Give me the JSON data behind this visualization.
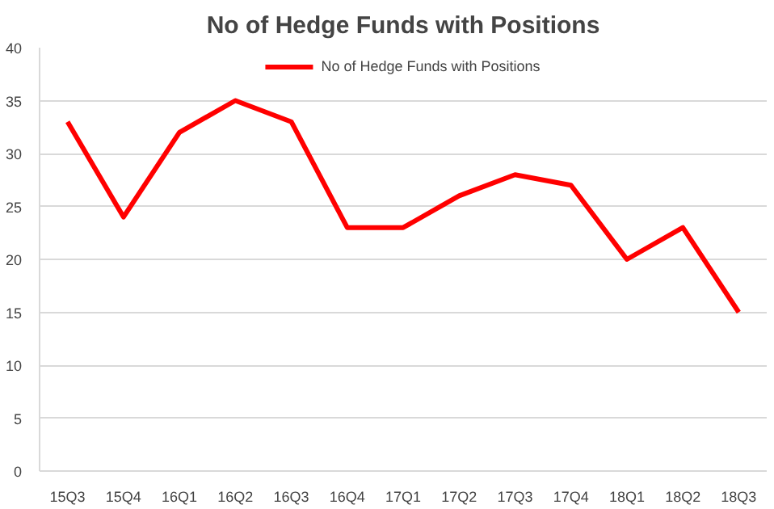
{
  "chart_data": {
    "type": "line",
    "title": "No of Hedge Funds with Positions",
    "categories": [
      "15Q3",
      "15Q4",
      "16Q1",
      "16Q2",
      "16Q3",
      "16Q4",
      "17Q1",
      "17Q2",
      "17Q3",
      "17Q4",
      "18Q1",
      "18Q2",
      "18Q3"
    ],
    "series": [
      {
        "name": "No of Hedge Funds with Positions",
        "color": "#ff0000",
        "values": [
          33,
          24,
          32,
          35,
          33,
          23,
          23,
          26,
          28,
          27,
          20,
          23,
          15
        ]
      }
    ],
    "ylim": [
      0,
      40
    ],
    "yticks": [
      0,
      5,
      10,
      15,
      20,
      25,
      30,
      35,
      40
    ],
    "grid": "y",
    "legend": "top",
    "marker": "none",
    "line_style": "solid"
  }
}
